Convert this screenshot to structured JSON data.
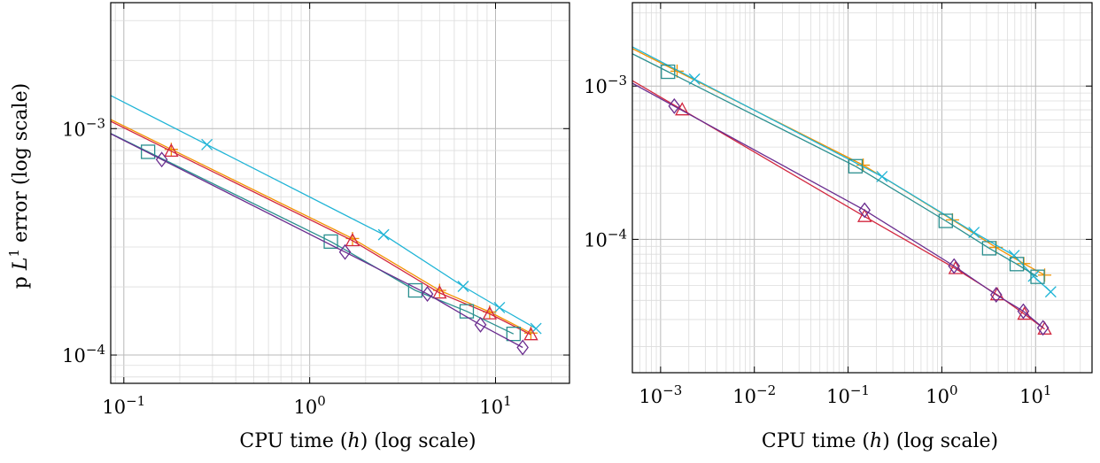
{
  "chart_data": [
    {
      "type": "line",
      "xlabel": "CPU time (h) (log scale)",
      "ylabel": "p L1 error (log scale)",
      "xscale": "log",
      "yscale": "log",
      "xlim": [
        0.085,
        25
      ],
      "ylim": [
        7.5e-05,
        0.0036
      ],
      "xticks": [
        0.1,
        1,
        10
      ],
      "xtick_labels": [
        "10^-1",
        "10^0",
        "10^1"
      ],
      "yticks": [
        0.0001,
        0.001
      ],
      "ytick_labels": [
        "10^-4",
        "10^-3"
      ],
      "grid": true,
      "series": [
        {
          "color": "#1fb4d6",
          "marker": "x",
          "x": [
            0.28,
            2.5,
            6.7,
            10.5,
            16.5
          ],
          "y": [
            0.00085,
            0.00034,
            0.000201,
            0.000162,
            0.000131
          ]
        },
        {
          "color": "#f39200",
          "marker": "+",
          "x": [
            0.18,
            1.7,
            5.0,
            9.3,
            15.5
          ],
          "y": [
            0.00081,
            0.000327,
            0.000193,
            0.000155,
            0.000125
          ]
        },
        {
          "color": "#d2273f",
          "marker": "triangle",
          "x": [
            0.18,
            1.7,
            5.0,
            9.3,
            15.5
          ],
          "y": [
            0.000795,
            0.00032,
            0.000188,
            0.000152,
            0.000123
          ]
        },
        {
          "color": "#2a8f8f",
          "marker": "square",
          "x": [
            0.135,
            1.3,
            3.7,
            7.0,
            12.5
          ],
          "y": [
            0.00079,
            0.000317,
            0.000193,
            0.000156,
            0.000124
          ]
        },
        {
          "color": "#6a2c8f",
          "marker": "diamond",
          "x": [
            0.16,
            1.55,
            4.3,
            8.3,
            14.0
          ],
          "y": [
            0.00073,
            0.000285,
            0.000186,
            0.000136,
            0.000108
          ]
        }
      ]
    },
    {
      "type": "line",
      "xlabel": "CPU time (h) (log scale)",
      "ylabel": "",
      "xscale": "log",
      "yscale": "log",
      "xlim": [
        0.0005,
        40
      ],
      "ylim": [
        1.35e-05,
        0.0035
      ],
      "xticks": [
        0.001,
        0.01,
        0.1,
        1,
        10
      ],
      "xtick_labels": [
        "10^-3",
        "10^-2",
        "10^-1",
        "10^0",
        "10^1"
      ],
      "yticks": [
        0.0001,
        0.001
      ],
      "ytick_labels": [
        "10^-4",
        "10^-3"
      ],
      "grid": true,
      "series": [
        {
          "color": "#f39200",
          "marker": "+",
          "x": [
            0.0015,
            0.145,
            1.3,
            3.8,
            7.5,
            12.5
          ],
          "y": [
            0.00125,
            0.000305,
            0.000134,
            8.85e-05,
            6.95e-05,
            5.85e-05
          ]
        },
        {
          "color": "#1fb4d6",
          "marker": "x",
          "x": [
            0.0023,
            0.23,
            2.2,
            5.9,
            9.5,
            14.5
          ],
          "y": [
            0.00111,
            0.000257,
            0.000111,
            7.85e-05,
            5.75e-05,
            4.55e-05
          ]
        },
        {
          "color": "#2a8f8f",
          "marker": "square",
          "x": [
            0.0012,
            0.12,
            1.1,
            3.2,
            6.3,
            10.5
          ],
          "y": [
            0.00124,
            0.0003,
            0.000132,
            8.75e-05,
            6.9e-05,
            5.7e-05
          ]
        },
        {
          "color": "#d2273f",
          "marker": "triangle",
          "x": [
            0.0017,
            0.15,
            1.4,
            3.9,
            7.6,
            12.5
          ],
          "y": [
            0.0007,
            0.000141,
            6.45e-05,
            4.35e-05,
            3.25e-05,
            2.6e-05
          ]
        },
        {
          "color": "#6a2c8f",
          "marker": "diamond",
          "x": [
            0.0014,
            0.15,
            1.35,
            3.8,
            7.4,
            12.0
          ],
          "y": [
            0.00074,
            0.000155,
            6.7e-05,
            4.35e-05,
            3.4e-05,
            2.65e-05
          ]
        }
      ]
    }
  ]
}
